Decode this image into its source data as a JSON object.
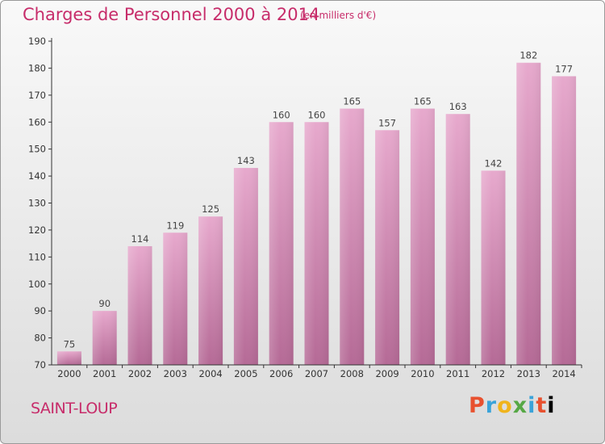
{
  "chart_data": {
    "type": "bar",
    "title": "Charges de Personnel 2000 à 2014",
    "subtitle": "(en milliers d'€)",
    "categories": [
      "2000",
      "2001",
      "2002",
      "2003",
      "2004",
      "2005",
      "2006",
      "2007",
      "2008",
      "2009",
      "2010",
      "2011",
      "2012",
      "2013",
      "2014"
    ],
    "values": [
      75,
      90,
      114,
      119,
      125,
      143,
      160,
      160,
      165,
      157,
      165,
      163,
      142,
      182,
      177
    ],
    "ylim": [
      70,
      190
    ],
    "yticks": [
      70,
      80,
      90,
      100,
      110,
      120,
      130,
      140,
      150,
      160,
      170,
      180,
      190
    ],
    "grid": false,
    "bar_color": "#d889b5",
    "label_color": "#444444"
  },
  "footer": {
    "place": "SAINT-LOUP",
    "logo_letters": [
      "P",
      "r",
      "o",
      "x",
      "i",
      "t",
      "i"
    ]
  },
  "colors": {
    "accent": "#c72c6a"
  }
}
